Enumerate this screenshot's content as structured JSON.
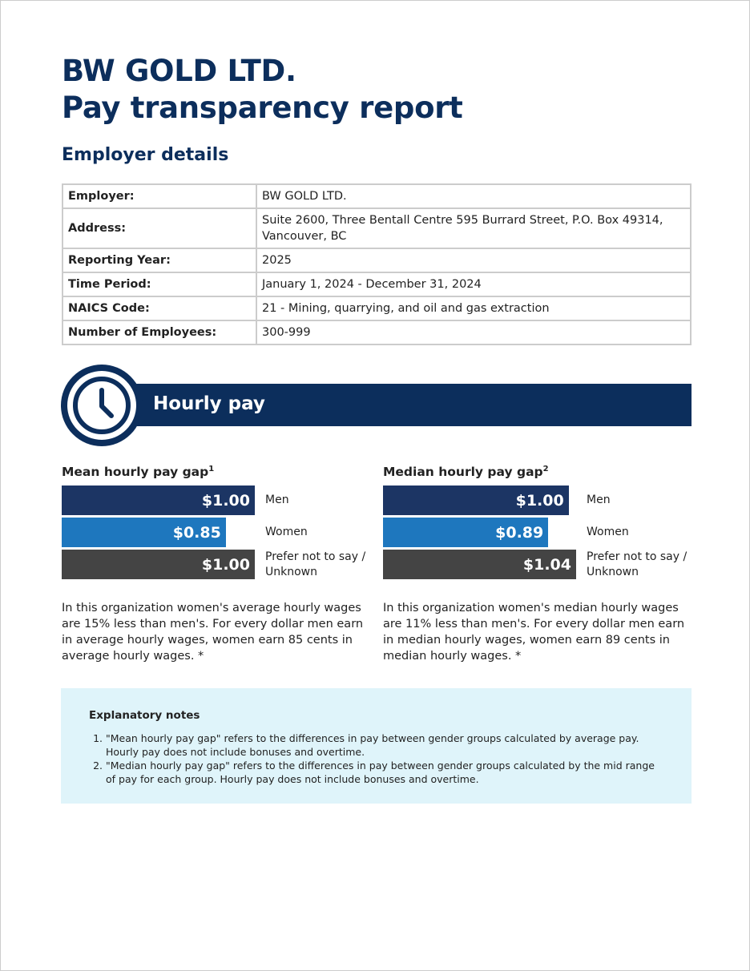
{
  "header": {
    "company": "BW GOLD LTD.",
    "title": "Pay transparency report"
  },
  "employer_details": {
    "heading": "Employer details",
    "rows": [
      [
        "Employer:",
        "BW GOLD LTD."
      ],
      [
        "Address:",
        "Suite 2600, Three Bentall Centre 595 Burrard Street, P.O. Box 49314, Vancouver, BC"
      ],
      [
        "Reporting Year:",
        "2025"
      ],
      [
        "Time Period:",
        "January 1, 2024 - December 31, 2024"
      ],
      [
        "NAICS Code:",
        "21 - Mining, quarrying, and oil and gas extraction"
      ],
      [
        "Number of Employees:",
        "300-999"
      ]
    ]
  },
  "section": {
    "title": "Hourly pay"
  },
  "chart_data": [
    {
      "type": "bar",
      "title": "Mean hourly pay gap",
      "footnote": "1",
      "categories": [
        "Men",
        "Women",
        "Prefer not to say / Unknown"
      ],
      "values": [
        1.0,
        0.85,
        1.0
      ],
      "value_labels": [
        "$1.00",
        "$0.85",
        "$1.00"
      ],
      "colors": [
        "#1c3564",
        "#1e77be",
        "#444444"
      ],
      "summary": "In this organization women's average hourly wages are 15% less than men's. For every dollar men earn in average hourly wages, women earn 85 cents in average hourly wages. *"
    },
    {
      "type": "bar",
      "title": "Median hourly pay gap",
      "footnote": "2",
      "categories": [
        "Men",
        "Women",
        "Prefer not to say / Unknown"
      ],
      "values": [
        1.0,
        0.89,
        1.04
      ],
      "value_labels": [
        "$1.00",
        "$0.89",
        "$1.04"
      ],
      "colors": [
        "#1c3564",
        "#1e77be",
        "#444444"
      ],
      "summary": "In this organization women's median hourly wages are 11% less than men's. For every dollar men earn in median hourly wages, women earn 89 cents in median hourly wages. *"
    }
  ],
  "notes": {
    "title": "Explanatory notes",
    "items": [
      "\"Mean hourly pay gap\" refers to the differences in pay between gender groups calculated by average pay. Hourly pay does not include bonuses and overtime.",
      "\"Median hourly pay gap\" refers to the differences in pay between gender groups calculated by the mid range of pay for each group. Hourly pay does not include bonuses and overtime."
    ]
  }
}
